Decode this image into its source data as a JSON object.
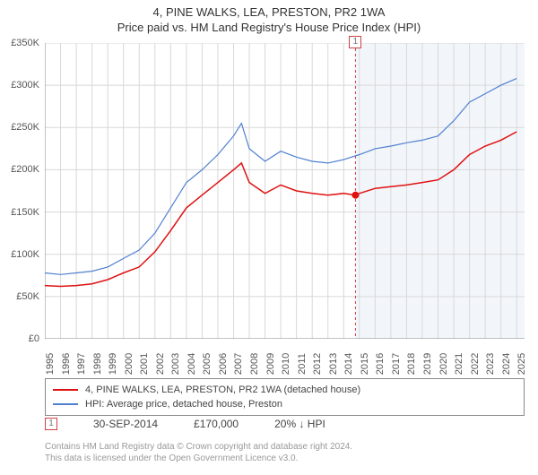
{
  "title_main": "4, PINE WALKS, LEA, PRESTON, PR2 1WA",
  "title_sub": "Price paid vs. HM Land Registry's House Price Index (HPI)",
  "chart": {
    "type": "line",
    "background_color": "#ffffff",
    "grid_color": "#d8d8d8",
    "shaded_region_color": "#f2f6fb",
    "vline_color": "#d04040",
    "vline_dash": "3,3",
    "axis_color": "#888888",
    "tick_font_size": 11,
    "x_years": [
      1995,
      1996,
      1997,
      1998,
      1999,
      2000,
      2001,
      2002,
      2003,
      2004,
      2005,
      2006,
      2007,
      2008,
      2009,
      2010,
      2011,
      2012,
      2013,
      2014,
      2015,
      2016,
      2017,
      2018,
      2019,
      2020,
      2021,
      2022,
      2023,
      2024,
      2025
    ],
    "xlim": [
      1995,
      2025.5
    ],
    "ylim": [
      0,
      350000
    ],
    "ytick_step": 50000,
    "ytick_labels": [
      "£0",
      "£50K",
      "£100K",
      "£150K",
      "£200K",
      "£250K",
      "£300K",
      "£350K"
    ],
    "sale_marker_x": 2014.75,
    "sale_marker_y": 170000,
    "sale_marker_label": "1",
    "series": [
      {
        "name": "price_paid",
        "label": "4, PINE WALKS, LEA, PRESTON, PR2 1WA (detached house)",
        "color": "#e01010",
        "line_width": 1.5,
        "data": [
          [
            1995,
            63000
          ],
          [
            1996,
            62000
          ],
          [
            1997,
            63000
          ],
          [
            1998,
            65000
          ],
          [
            1999,
            70000
          ],
          [
            2000,
            78000
          ],
          [
            2001,
            85000
          ],
          [
            2002,
            103000
          ],
          [
            2003,
            128000
          ],
          [
            2004,
            155000
          ],
          [
            2005,
            170000
          ],
          [
            2006,
            185000
          ],
          [
            2007,
            200000
          ],
          [
            2007.5,
            208000
          ],
          [
            2008,
            185000
          ],
          [
            2009,
            172000
          ],
          [
            2010,
            182000
          ],
          [
            2011,
            175000
          ],
          [
            2012,
            172000
          ],
          [
            2013,
            170000
          ],
          [
            2014,
            172000
          ],
          [
            2014.75,
            170000
          ],
          [
            2015,
            172000
          ],
          [
            2016,
            178000
          ],
          [
            2017,
            180000
          ],
          [
            2018,
            182000
          ],
          [
            2019,
            185000
          ],
          [
            2020,
            188000
          ],
          [
            2021,
            200000
          ],
          [
            2022,
            218000
          ],
          [
            2023,
            228000
          ],
          [
            2024,
            235000
          ],
          [
            2025,
            245000
          ]
        ]
      },
      {
        "name": "hpi",
        "label": "HPI: Average price, detached house, Preston",
        "color": "#5080d0",
        "line_width": 1.2,
        "data": [
          [
            1995,
            78000
          ],
          [
            1996,
            76000
          ],
          [
            1997,
            78000
          ],
          [
            1998,
            80000
          ],
          [
            1999,
            85000
          ],
          [
            2000,
            95000
          ],
          [
            2001,
            105000
          ],
          [
            2002,
            125000
          ],
          [
            2003,
            155000
          ],
          [
            2004,
            185000
          ],
          [
            2005,
            200000
          ],
          [
            2006,
            218000
          ],
          [
            2007,
            240000
          ],
          [
            2007.5,
            255000
          ],
          [
            2008,
            225000
          ],
          [
            2009,
            210000
          ],
          [
            2010,
            222000
          ],
          [
            2011,
            215000
          ],
          [
            2012,
            210000
          ],
          [
            2013,
            208000
          ],
          [
            2014,
            212000
          ],
          [
            2015,
            218000
          ],
          [
            2016,
            225000
          ],
          [
            2017,
            228000
          ],
          [
            2018,
            232000
          ],
          [
            2019,
            235000
          ],
          [
            2020,
            240000
          ],
          [
            2021,
            258000
          ],
          [
            2022,
            280000
          ],
          [
            2023,
            290000
          ],
          [
            2024,
            300000
          ],
          [
            2025,
            308000
          ]
        ]
      }
    ]
  },
  "legend": {
    "series1_label": "4, PINE WALKS, LEA, PRESTON, PR2 1WA (detached house)",
    "series2_label": "HPI: Average price, detached house, Preston"
  },
  "sale": {
    "marker": "1",
    "date": "30-SEP-2014",
    "price": "£170,000",
    "pct": "20% ↓ HPI"
  },
  "credits": {
    "line1": "Contains HM Land Registry data © Crown copyright and database right 2024.",
    "line2": "This data is licensed under the Open Government Licence v3.0."
  }
}
